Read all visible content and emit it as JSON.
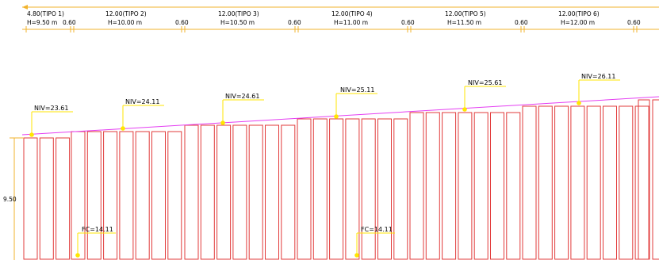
{
  "colors": {
    "dim_line": "#f2b32c",
    "pile_outline": "#e23b3b",
    "slope_line": "#e43ef2",
    "marker": "#ffe600",
    "text": "#000000"
  },
  "top_dimensions": [
    {
      "length": "4.80(TIPO  1)",
      "height": "H=9.50  m"
    },
    {
      "gap": "0.60"
    },
    {
      "length": "12.00(TIPO  2)",
      "height": "H=10.00  m"
    },
    {
      "gap": "0.60"
    },
    {
      "length": "12.00(TIPO  3)",
      "height": "H=10.50  m"
    },
    {
      "gap": "0.60"
    },
    {
      "length": "12.00(TIPO  4)",
      "height": "H=11.00  m"
    },
    {
      "gap": "0.60"
    },
    {
      "length": "12.00(TIPO  5)",
      "height": "H=11.50  m"
    },
    {
      "gap": "0.60"
    },
    {
      "length": "12.00(TIPO  6)",
      "height": "H=12.00  m"
    },
    {
      "gap": "0.60"
    }
  ],
  "niv_labels": [
    "NIV=23.61",
    "NIV=24.11",
    "NIV=24.61",
    "NIV=25.11",
    "NIV=25.61",
    "NIV=26.11"
  ],
  "fc_labels": [
    "FC=14.11",
    "FC=14.11"
  ],
  "height_dim": "9.50"
}
